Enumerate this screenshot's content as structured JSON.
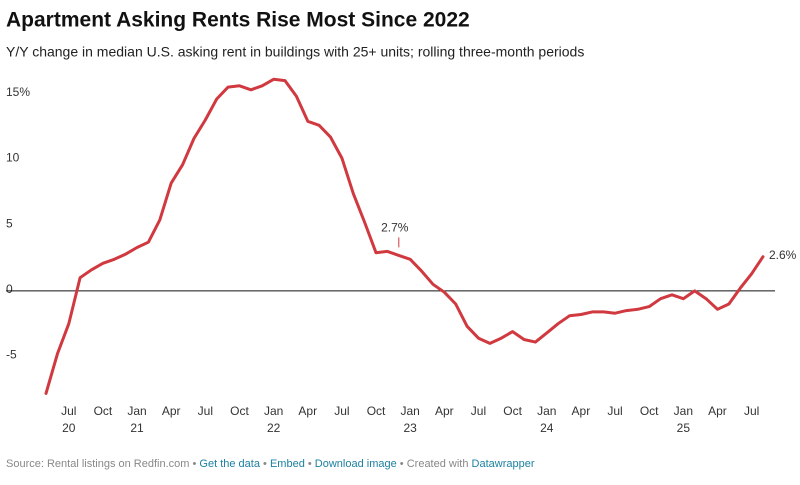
{
  "chart_data": {
    "type": "line",
    "title": "Apartment Asking Rents Rise Most Since 2022",
    "subtitle": "Y/Y change in median U.S. asking rent in buildings with 25+ units; rolling three-month periods",
    "x": [
      "2020-05",
      "2020-06",
      "2020-07",
      "2020-08",
      "2020-09",
      "2020-10",
      "2020-11",
      "2020-12",
      "2021-01",
      "2021-02",
      "2021-03",
      "2021-04",
      "2021-05",
      "2021-06",
      "2021-07",
      "2021-08",
      "2021-09",
      "2021-10",
      "2021-11",
      "2021-12",
      "2022-01",
      "2022-02",
      "2022-03",
      "2022-04",
      "2022-05",
      "2022-06",
      "2022-07",
      "2022-08",
      "2022-09",
      "2022-10",
      "2022-11",
      "2022-12",
      "2023-01",
      "2023-02",
      "2023-03",
      "2023-04",
      "2023-05",
      "2023-06",
      "2023-07",
      "2023-08",
      "2023-09",
      "2023-10",
      "2023-11",
      "2023-12",
      "2024-01",
      "2024-02",
      "2024-03",
      "2024-04",
      "2024-05",
      "2024-06",
      "2024-07",
      "2024-08",
      "2024-09",
      "2024-10",
      "2024-11",
      "2024-12",
      "2025-01",
      "2025-02",
      "2025-03",
      "2025-04",
      "2025-05",
      "2025-06",
      "2025-07",
      "2025-08"
    ],
    "series": [
      {
        "name": "Y/Y change",
        "color": "#d0393f",
        "values": [
          -7.8,
          -4.8,
          -2.5,
          1.0,
          1.6,
          2.1,
          2.4,
          2.8,
          3.3,
          3.7,
          5.4,
          8.2,
          9.6,
          11.6,
          13.0,
          14.6,
          15.5,
          15.6,
          15.3,
          15.6,
          16.1,
          16.0,
          14.8,
          12.9,
          12.6,
          11.7,
          10.1,
          7.4,
          5.2,
          2.9,
          3.0,
          2.7,
          2.4,
          1.5,
          0.5,
          -0.1,
          -1.0,
          -2.7,
          -3.6,
          -4.0,
          -3.6,
          -3.1,
          -3.7,
          -3.9,
          -3.2,
          -2.5,
          -1.9,
          -1.8,
          -1.6,
          -1.6,
          -1.7,
          -1.5,
          -1.4,
          -1.2,
          -0.6,
          -0.3,
          -0.6,
          0.0,
          -0.6,
          -1.4,
          -1.0,
          0.2,
          1.3,
          2.6
        ],
        "value_labels": [
          null,
          null,
          null,
          null,
          null,
          null,
          null,
          null,
          null,
          null,
          null,
          null,
          null,
          null,
          null,
          null,
          null,
          null,
          null,
          null,
          null,
          null,
          null,
          null,
          null,
          null,
          null,
          null,
          null,
          null,
          null,
          "2.7%",
          null,
          null,
          null,
          null,
          null,
          null,
          null,
          null,
          null,
          null,
          null,
          null,
          null,
          null,
          null,
          null,
          null,
          null,
          null,
          null,
          null,
          null,
          null,
          null,
          null,
          null,
          null,
          null,
          null,
          null,
          null,
          "2.6%"
        ]
      }
    ],
    "xlim": [
      "2020-05",
      "2025-08"
    ],
    "xticks": [
      {
        "value": "2020-07",
        "label": "Jul",
        "year": "20"
      },
      {
        "value": "2020-10",
        "label": "Oct"
      },
      {
        "value": "2021-01",
        "label": "Jan",
        "year": "21"
      },
      {
        "value": "2021-04",
        "label": "Apr"
      },
      {
        "value": "2021-07",
        "label": "Jul"
      },
      {
        "value": "2021-10",
        "label": "Oct"
      },
      {
        "value": "2022-01",
        "label": "Jan",
        "year": "22"
      },
      {
        "value": "2022-04",
        "label": "Apr"
      },
      {
        "value": "2022-07",
        "label": "Jul"
      },
      {
        "value": "2022-10",
        "label": "Oct"
      },
      {
        "value": "2023-01",
        "label": "Jan",
        "year": "23"
      },
      {
        "value": "2023-04",
        "label": "Apr"
      },
      {
        "value": "2023-07",
        "label": "Jul"
      },
      {
        "value": "2023-10",
        "label": "Oct"
      },
      {
        "value": "2024-01",
        "label": "Jan",
        "year": "24"
      },
      {
        "value": "2024-04",
        "label": "Apr"
      },
      {
        "value": "2024-07",
        "label": "Jul"
      },
      {
        "value": "2024-10",
        "label": "Oct"
      },
      {
        "value": "2025-01",
        "label": "Jan",
        "year": "25"
      },
      {
        "value": "2025-04",
        "label": "Apr"
      },
      {
        "value": "2025-07",
        "label": "Jul"
      }
    ],
    "ylim": [
      -8,
      16.5
    ],
    "yticks": [
      {
        "value": 15,
        "label": "15%"
      },
      10,
      5,
      0,
      -5
    ],
    "grid": false,
    "footer": {
      "source": "Source: Rental listings on Redfin.com",
      "links": [
        "Get the data",
        "Embed",
        "Download image"
      ],
      "credit_prefix": "Created with",
      "credit": "Datawrapper"
    }
  }
}
